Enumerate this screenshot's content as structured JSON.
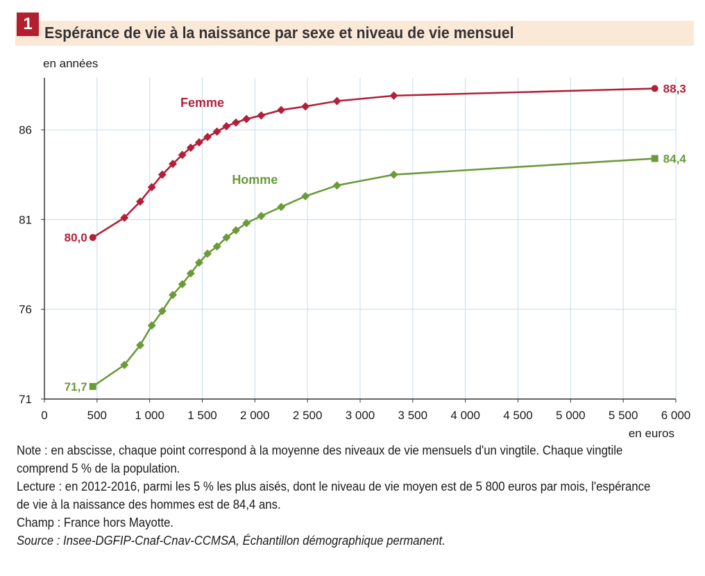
{
  "figure": {
    "number": "1",
    "title": "Espérance de vie à la naissance par sexe et niveau de vie mensuel"
  },
  "chart_data": {
    "type": "line",
    "ylabel": "en années",
    "xlabel": "en euros",
    "xlim": [
      0,
      6000
    ],
    "ylim": [
      71,
      88.3
    ],
    "x_ticks": [
      0,
      500,
      1000,
      1500,
      2000,
      2500,
      3000,
      3500,
      4000,
      4500,
      5000,
      5500,
      6000
    ],
    "x_tick_labels": [
      "0",
      "500",
      "1 000",
      "1 500",
      "2 000",
      "2 500",
      "3 000",
      "3 500",
      "4 000",
      "4 500",
      "5 000",
      "5 500",
      "6 000"
    ],
    "y_ticks": [
      71,
      76,
      81,
      86
    ],
    "y_tick_labels": [
      "71",
      "76",
      "81",
      "86"
    ],
    "grid": true,
    "series": [
      {
        "name": "Femme",
        "color": "#b21f38",
        "marker": "diamond",
        "x": [
          460,
          760,
          910,
          1020,
          1120,
          1220,
          1310,
          1390,
          1470,
          1550,
          1640,
          1730,
          1820,
          1920,
          2060,
          2250,
          2480,
          2780,
          3320,
          5800
        ],
        "y": [
          80.0,
          81.1,
          82.0,
          82.8,
          83.5,
          84.1,
          84.6,
          85.0,
          85.3,
          85.6,
          85.9,
          86.2,
          86.4,
          86.6,
          86.8,
          87.1,
          87.3,
          87.6,
          87.9,
          88.3
        ],
        "first_label": "80,0",
        "last_label": "88,3"
      },
      {
        "name": "Homme",
        "color": "#6a9a3a",
        "marker": "diamond",
        "x": [
          460,
          760,
          910,
          1020,
          1120,
          1220,
          1310,
          1390,
          1470,
          1550,
          1640,
          1730,
          1820,
          1920,
          2060,
          2250,
          2480,
          2780,
          3320,
          5800
        ],
        "y": [
          71.7,
          72.9,
          74.0,
          75.1,
          75.9,
          76.8,
          77.4,
          78.0,
          78.6,
          79.1,
          79.5,
          80.0,
          80.4,
          80.8,
          81.2,
          81.7,
          82.3,
          82.9,
          83.5,
          84.4
        ],
        "first_label": "71,7",
        "last_label": "84,4"
      }
    ]
  },
  "notes": {
    "note_line1": "Note : en abscisse, chaque point correspond à la moyenne des niveaux de vie mensuels d'un vingtile. Chaque vingtile",
    "note_line2": "comprend 5 % de la population.",
    "reading_line1": "Lecture : en 2012-2016, parmi les 5 % les plus aisés, dont le niveau de vie moyen est de 5 800 euros par mois, l'espérance",
    "reading_line2": "de vie à la naissance des hommes est de 84,4 ans.",
    "scope": "Champ : France hors Mayotte.",
    "source": "Source : Insee-DGFIP-Cnaf-Cnav-CCMSA, Échantillon démographique permanent."
  }
}
